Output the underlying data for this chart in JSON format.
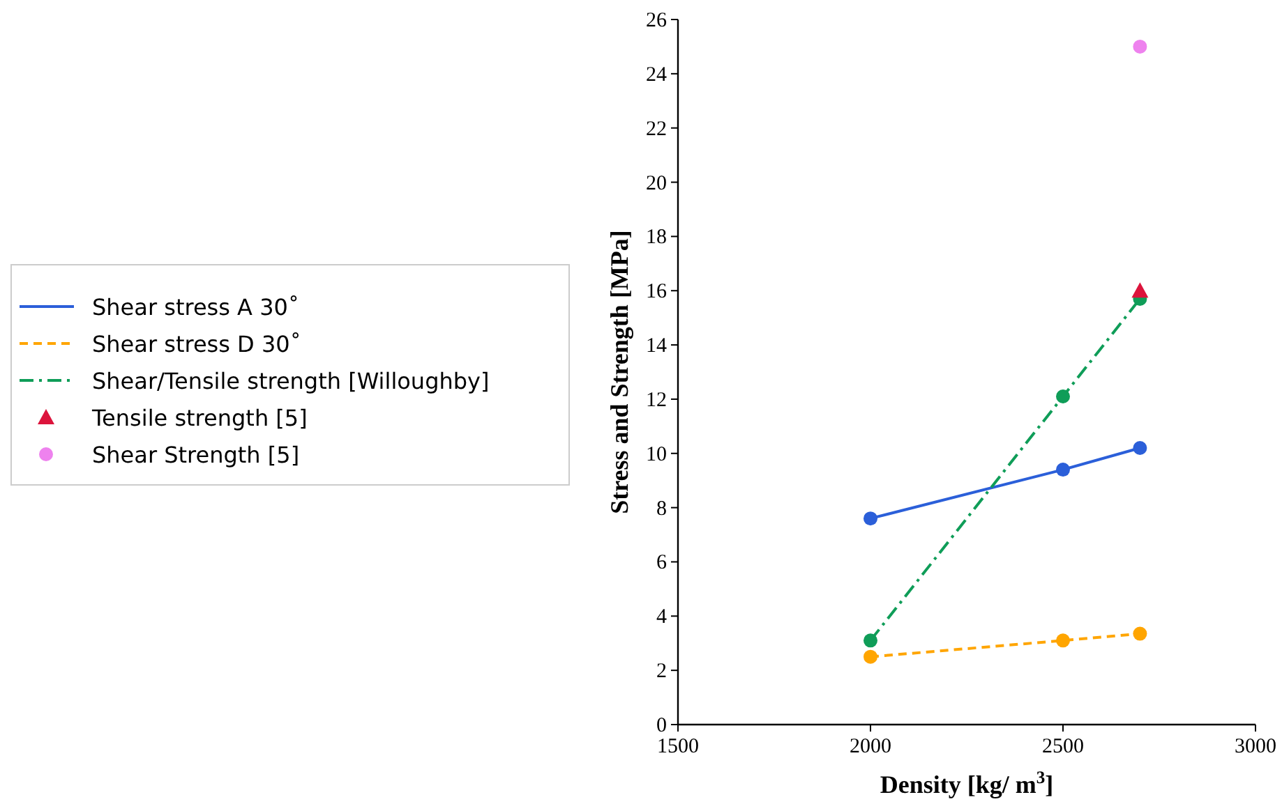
{
  "chart_data": {
    "type": "line",
    "xlabel": "Density [kg/ m$^{3}$]",
    "ylabel": "Stress and Strength [MPa]",
    "xlim": [
      1500,
      3000
    ],
    "xticks": [
      1500,
      2000,
      2500,
      3000
    ],
    "ylim": [
      0,
      26
    ],
    "yticks": [
      0,
      2,
      4,
      6,
      8,
      10,
      12,
      14,
      16,
      18,
      20,
      22,
      24,
      26
    ],
    "grid": false,
    "legend": "left",
    "x": [
      2000,
      2500,
      2700
    ],
    "series": [
      {
        "name": "Shear stress A 30˚",
        "color": "#2b5fd9",
        "values": [
          7.6,
          9.4,
          10.2
        ],
        "marker": "circle",
        "line_style": "solid"
      },
      {
        "name": "Shear stress D 30˚",
        "color": "#ffa500",
        "values": [
          2.5,
          3.1,
          3.35
        ],
        "marker": "circle",
        "line_style": "dashed"
      },
      {
        "name": "Shear/Tensile strength [Willoughby]",
        "color": "#0f9d58",
        "values": [
          3.1,
          12.1,
          15.7
        ],
        "marker": "circle",
        "line_style": "dashdot"
      },
      {
        "name": "Tensile strength [5]",
        "type": "scatter",
        "color": "#dc143c",
        "x": [
          2700
        ],
        "values": [
          16.0
        ],
        "marker": "triangle"
      },
      {
        "name": "Shear Strength [5]",
        "type": "scatter",
        "color": "#ee82ee",
        "x": [
          2700
        ],
        "values": [
          25.0
        ],
        "marker": "circle"
      }
    ]
  }
}
